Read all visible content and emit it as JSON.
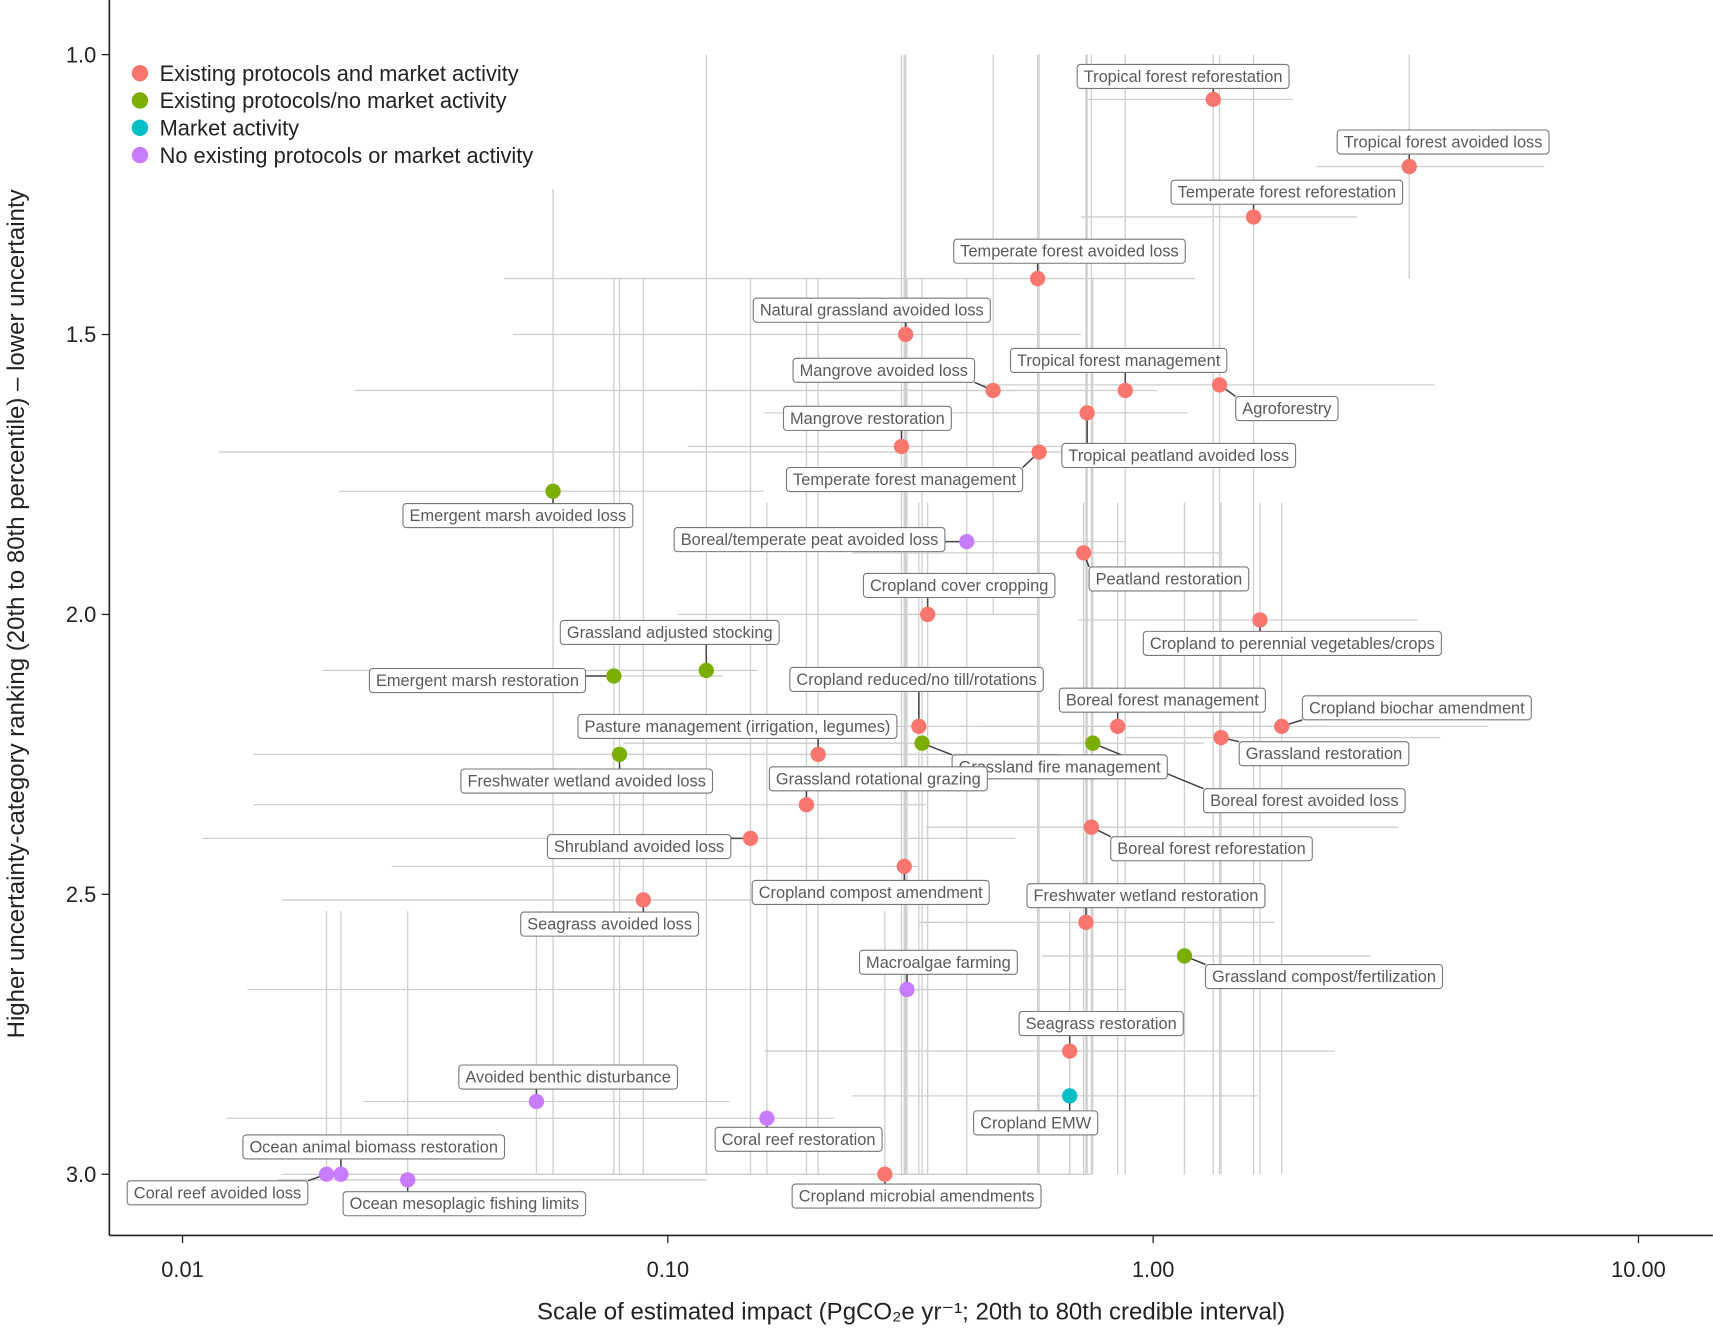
{
  "chart_data": {
    "type": "scatter",
    "xscale": "log",
    "xlabel": "Scale of estimated impact (PgCO₂e yr⁻¹; 20th to 80th credible interval)",
    "ylabel": "Higher uncertainty-category ranking (20th to 80th percentile) – lower uncertainty",
    "xlim": [
      0.0086,
      14
    ],
    "ylim": [
      3.11,
      0.9
    ],
    "y_inverted": true,
    "x_ticks": [
      {
        "v": 0.01,
        "label": "0.01"
      },
      {
        "v": 0.1,
        "label": "0.10"
      },
      {
        "v": 1,
        "label": "1.00"
      },
      {
        "v": 10,
        "label": "10.00"
      }
    ],
    "y_ticks": [
      {
        "v": 1.0,
        "label": "1.0"
      },
      {
        "v": 1.5,
        "label": "1.5"
      },
      {
        "v": 2.0,
        "label": "2.0"
      },
      {
        "v": 2.5,
        "label": "2.5"
      },
      {
        "v": 3.0,
        "label": "3.0"
      }
    ],
    "grid": false,
    "legend_position": "top-left",
    "legend": [
      {
        "label": "Existing protocols and market activity",
        "color": "#F8766D"
      },
      {
        "label": "Existing protocols/no market activity",
        "color": "#7CAE00"
      },
      {
        "label": "Market activity",
        "color": "#00BFC4"
      },
      {
        "label": "No existing protocols or market activity",
        "color": "#C77CFF"
      }
    ],
    "points": [
      {
        "name": "Tropical forest reforestation",
        "cat": 0,
        "x": 1.33,
        "y": 1.08,
        "x_lo": 0.73,
        "x_hi": 1.94,
        "y_lo": 1.0,
        "y_hi": 3.0
      },
      {
        "name": "Tropical forest avoided loss",
        "cat": 0,
        "x": 3.37,
        "y": 1.2,
        "x_lo": 2.17,
        "x_hi": 6.4,
        "y_lo": 1.0,
        "y_hi": 1.4
      },
      {
        "name": "Temperate forest reforestation",
        "cat": 0,
        "x": 1.61,
        "y": 1.29,
        "x_lo": 0.71,
        "x_hi": 2.63,
        "y_lo": 1.0,
        "y_hi": 3.0
      },
      {
        "name": "Temperate forest avoided loss",
        "cat": 0,
        "x": 0.578,
        "y": 1.4,
        "x_lo": 0.046,
        "x_hi": 1.22,
        "y_lo": 1.0,
        "y_hi": 3.0
      },
      {
        "name": "Natural grassland avoided loss",
        "cat": 0,
        "x": 0.309,
        "y": 1.5,
        "x_lo": 0.048,
        "x_hi": 0.71,
        "y_lo": 1.0,
        "y_hi": 3.0
      },
      {
        "name": "Mangrove avoided loss",
        "cat": 0,
        "x": 0.468,
        "y": 1.6,
        "x_lo": 0.0226,
        "x_hi": 0.52,
        "y_lo": 1.0,
        "y_hi": 2.0
      },
      {
        "name": "Tropical forest management",
        "cat": 0,
        "x": 0.876,
        "y": 1.6,
        "x_lo": 0.116,
        "x_hi": 1.02,
        "y_lo": 1.0,
        "y_hi": 3.0
      },
      {
        "name": "Agroforestry",
        "cat": 0,
        "x": 1.37,
        "y": 1.59,
        "x_lo": 0.446,
        "x_hi": 3.8,
        "y_lo": 1.0,
        "y_hi": 3.0
      },
      {
        "name": "Tropical peatland avoided loss",
        "cat": 0,
        "x": 0.731,
        "y": 1.64,
        "x_lo": 0.158,
        "x_hi": 1.18,
        "y_lo": 1.0,
        "y_hi": 3.0
      },
      {
        "name": "Mangrove restoration",
        "cat": 0,
        "x": 0.303,
        "y": 1.7,
        "x_lo": 0.11,
        "x_hi": 0.75,
        "y_lo": 1.0,
        "y_hi": 3.0
      },
      {
        "name": "Temperate forest management",
        "cat": 0,
        "x": 0.582,
        "y": 1.71,
        "x_lo": 0.0119,
        "x_hi": 0.75,
        "y_lo": 1.0,
        "y_hi": 3.0
      },
      {
        "name": "Emergent marsh avoided loss",
        "cat": 1,
        "x": 0.058,
        "y": 1.78,
        "x_lo": 0.021,
        "x_hi": 0.158,
        "y_lo": 1.24,
        "y_hi": 3.0
      },
      {
        "name": "Boreal/temperate peat avoided loss",
        "cat": 3,
        "x": 0.413,
        "y": 1.87,
        "x_lo": 0.195,
        "x_hi": 0.88,
        "y_lo": 1.4,
        "y_hi": 3.0
      },
      {
        "name": "Peatland restoration",
        "cat": 0,
        "x": 0.719,
        "y": 1.89,
        "x_lo": 0.24,
        "x_hi": 1.39,
        "y_lo": 1.8,
        "y_hi": 3.0
      },
      {
        "name": "Cropland cover cropping",
        "cat": 0,
        "x": 0.343,
        "y": 2.0,
        "x_lo": 0.105,
        "x_hi": 0.58,
        "y_lo": 1.8,
        "y_hi": 3.0
      },
      {
        "name": "Cropland to perennial vegetables/crops",
        "cat": 0,
        "x": 1.66,
        "y": 2.01,
        "x_lo": 0.7,
        "x_hi": 3.5,
        "y_lo": 1.8,
        "y_hi": 3.0
      },
      {
        "name": "Grassland adjusted stocking",
        "cat": 1,
        "x": 0.12,
        "y": 2.1,
        "x_lo": 0.0194,
        "x_hi": 0.153,
        "y_lo": 1.0,
        "y_hi": 3.0
      },
      {
        "name": "Emergent marsh restoration",
        "cat": 1,
        "x": 0.0774,
        "y": 2.11,
        "x_lo": 0.03,
        "x_hi": 0.13,
        "y_lo": 1.4,
        "y_hi": 3.0
      },
      {
        "name": "Cropland reduced/no till/rotations",
        "cat": 0,
        "x": 0.329,
        "y": 2.2,
        "x_lo": 0.158,
        "x_hi": 2.3,
        "y_lo": 1.8,
        "y_hi": 3.0
      },
      {
        "name": "Boreal forest management",
        "cat": 0,
        "x": 0.845,
        "y": 2.2,
        "x_lo": 0.446,
        "x_hi": 1.9,
        "y_lo": 1.8,
        "y_hi": 3.0
      },
      {
        "name": "Cropland biochar amendment",
        "cat": 0,
        "x": 1.84,
        "y": 2.2,
        "x_lo": 0.75,
        "x_hi": 4.9,
        "y_lo": 1.8,
        "y_hi": 3.0
      },
      {
        "name": "Grassland restoration",
        "cat": 0,
        "x": 1.38,
        "y": 2.22,
        "x_lo": 0.88,
        "x_hi": 3.9,
        "y_lo": 1.8,
        "y_hi": 3.0
      },
      {
        "name": "Pasture management (irrigation, legumes)",
        "cat": 0,
        "x": 0.204,
        "y": 2.25,
        "x_lo": 0.023,
        "x_hi": 0.64,
        "y_lo": 1.4,
        "y_hi": 3.0
      },
      {
        "name": "Grassland fire management",
        "cat": 1,
        "x": 0.334,
        "y": 2.23,
        "x_lo": 0.081,
        "x_hi": 0.446,
        "y_lo": 1.4,
        "y_hi": 3.0
      },
      {
        "name": "Boreal forest avoided loss",
        "cat": 1,
        "x": 0.751,
        "y": 2.23,
        "x_lo": 0.446,
        "x_hi": 1.27,
        "y_lo": 1.4,
        "y_hi": 3.0
      },
      {
        "name": "Freshwater wetland avoided loss",
        "cat": 1,
        "x": 0.0795,
        "y": 2.25,
        "x_lo": 0.014,
        "x_hi": 0.47,
        "y_lo": 1.4,
        "y_hi": 3.0
      },
      {
        "name": "Grassland rotational grazing",
        "cat": 0,
        "x": 0.193,
        "y": 2.34,
        "x_lo": 0.014,
        "x_hi": 0.34,
        "y_lo": 1.4,
        "y_hi": 3.0
      },
      {
        "name": "Shrubland avoided loss",
        "cat": 0,
        "x": 0.148,
        "y": 2.4,
        "x_lo": 0.011,
        "x_hi": 0.52,
        "y_lo": 1.4,
        "y_hi": 3.0
      },
      {
        "name": "Boreal forest reforestation",
        "cat": 0,
        "x": 0.746,
        "y": 2.38,
        "x_lo": 0.34,
        "x_hi": 3.2,
        "y_lo": 1.0,
        "y_hi": 3.0
      },
      {
        "name": "Cropland compost amendment",
        "cat": 0,
        "x": 0.307,
        "y": 2.45,
        "x_lo": 0.027,
        "x_hi": 0.33,
        "y_lo": 1.0,
        "y_hi": 3.0
      },
      {
        "name": "Seagrass avoided loss",
        "cat": 0,
        "x": 0.089,
        "y": 2.51,
        "x_lo": 0.016,
        "x_hi": 0.22,
        "y_lo": 1.4,
        "y_hi": 3.0
      },
      {
        "name": "Freshwater wetland restoration",
        "cat": 0,
        "x": 0.727,
        "y": 2.55,
        "x_lo": 0.33,
        "x_hi": 1.78,
        "y_lo": 1.0,
        "y_hi": 3.0
      },
      {
        "name": "Grassland compost/fertilization",
        "cat": 1,
        "x": 1.16,
        "y": 2.61,
        "x_lo": 0.59,
        "x_hi": 2.8,
        "y_lo": 1.8,
        "y_hi": 3.0
      },
      {
        "name": "Macroalgae farming",
        "cat": 3,
        "x": 0.311,
        "y": 2.67,
        "x_lo": 0.0136,
        "x_hi": 0.88,
        "y_lo": 1.4,
        "y_hi": 3.0
      },
      {
        "name": "Seagrass restoration",
        "cat": 0,
        "x": 0.673,
        "y": 2.78,
        "x_lo": 0.158,
        "x_hi": 2.37,
        "y_lo": 2.53,
        "y_hi": 3.0
      },
      {
        "name": "Cropland EMW",
        "cat": 2,
        "x": 0.673,
        "y": 2.86,
        "x_lo": 0.24,
        "x_hi": 1.64,
        "y_lo": 2.53,
        "y_hi": 3.0
      },
      {
        "name": "Avoided benthic disturbance",
        "cat": 3,
        "x": 0.0536,
        "y": 2.87,
        "x_lo": 0.0236,
        "x_hi": 0.134,
        "y_lo": 2.53,
        "y_hi": 3.0
      },
      {
        "name": "Coral reef restoration",
        "cat": 3,
        "x": 0.16,
        "y": 2.9,
        "x_lo": 0.0123,
        "x_hi": 0.22,
        "y_lo": 1.8,
        "y_hi": 3.0
      },
      {
        "name": "Ocean animal biomass restoration",
        "cat": 3,
        "x": 0.0212,
        "y": 3.0,
        "x_lo": 0.016,
        "x_hi": 0.12,
        "y_lo": 2.53,
        "y_hi": 3.0
      },
      {
        "name": "Coral reef avoided loss",
        "cat": 3,
        "x": 0.0198,
        "y": 3.0,
        "x_lo": 0.018,
        "x_hi": 0.75,
        "y_lo": 2.53,
        "y_hi": 3.0
      },
      {
        "name": "Ocean mesoplagic fishing limits",
        "cat": 3,
        "x": 0.0291,
        "y": 3.01,
        "x_lo": 0.0157,
        "x_hi": 0.12,
        "y_lo": 2.53,
        "y_hi": 3.0
      },
      {
        "name": "Cropland microbial amendments",
        "cat": 0,
        "x": 0.28,
        "y": 3.0,
        "x_lo": 0.0245,
        "x_hi": 0.71,
        "y_lo": 2.53,
        "y_hi": 3.0
      }
    ]
  }
}
